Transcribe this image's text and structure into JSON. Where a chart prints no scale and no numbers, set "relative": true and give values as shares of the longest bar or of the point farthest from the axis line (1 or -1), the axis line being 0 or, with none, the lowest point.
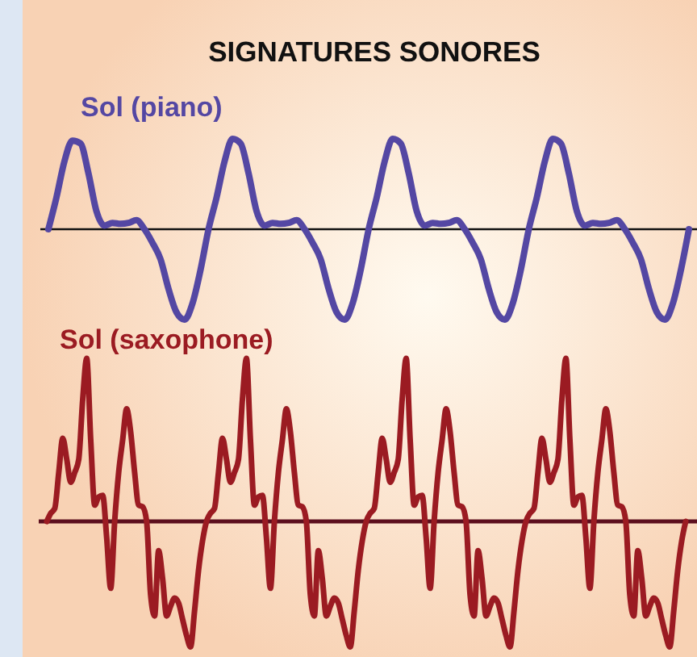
{
  "chart_data": [
    {
      "type": "line",
      "title": "SIGNATURES SONORES",
      "relative": true,
      "categories": [
        null,
        null,
        null,
        null,
        null,
        null,
        null,
        null,
        null,
        null,
        null,
        null,
        null,
        null,
        null,
        null,
        null,
        null,
        null,
        null,
        null,
        null,
        null,
        null,
        null,
        null,
        null,
        null,
        null,
        null,
        null,
        null,
        null,
        null,
        null,
        null,
        null,
        null,
        null,
        null,
        null,
        null,
        null,
        null,
        null,
        null,
        null,
        null,
        null,
        null,
        null,
        null,
        null,
        null,
        null,
        null,
        null,
        null,
        null,
        null,
        null,
        null,
        null,
        null,
        null,
        null,
        null,
        null,
        null,
        null,
        null,
        null,
        null,
        null,
        null,
        null,
        null,
        null,
        null,
        null,
        null
      ],
      "series": [
        {
          "name": "Sol (piano)",
          "color": "#5447a3",
          "values": [
            0,
            0.35,
            0.75,
            0.98,
            0.95,
            0.62,
            0.2,
            0.04,
            0.07,
            0.06,
            0.07,
            0.1,
            0,
            -0.15,
            -0.33,
            -0.66,
            -0.92,
            -1,
            -0.82,
            -0.45,
            0,
            0.35,
            0.75,
            1,
            0.95,
            0.62,
            0.2,
            0.04,
            0.07,
            0.06,
            0.07,
            0.1,
            0,
            -0.15,
            -0.33,
            -0.66,
            -0.92,
            -1,
            -0.82,
            -0.45,
            0,
            0.35,
            0.75,
            1,
            0.95,
            0.62,
            0.2,
            0.04,
            0.07,
            0.06,
            0.07,
            0.1,
            0,
            -0.15,
            -0.33,
            -0.66,
            -0.92,
            -1,
            -0.82,
            -0.45,
            0,
            0.35,
            0.75,
            1,
            0.95,
            0.62,
            0.2,
            0.04,
            0.07,
            0.06,
            0.07,
            0.1,
            0,
            -0.15,
            -0.33,
            -0.66,
            -0.92,
            -1,
            -0.82,
            -0.45,
            0
          ]
        }
      ]
    },
    {
      "type": "line",
      "relative": true,
      "categories": [
        null,
        null,
        null,
        null,
        null,
        null,
        null,
        null,
        null,
        null,
        null,
        null,
        null,
        null,
        null,
        null,
        null,
        null,
        null,
        null,
        null,
        null,
        null,
        null,
        null,
        null,
        null,
        null,
        null,
        null,
        null,
        null,
        null,
        null,
        null,
        null,
        null,
        null,
        null,
        null,
        null,
        null,
        null,
        null,
        null,
        null,
        null,
        null,
        null,
        null,
        null,
        null,
        null,
        null,
        null,
        null,
        null,
        null,
        null,
        null,
        null,
        null,
        null,
        null,
        null,
        null,
        null,
        null,
        null,
        null,
        null,
        null,
        null,
        null,
        null,
        null,
        null,
        null,
        null,
        null,
        null,
        null,
        null,
        null,
        null,
        null,
        null,
        null,
        null,
        null,
        null,
        null,
        null,
        null,
        null,
        null,
        null,
        null,
        null,
        null,
        null,
        null,
        null,
        null,
        null,
        null,
        null,
        null,
        null,
        null,
        null,
        null,
        null,
        null,
        null,
        null,
        null,
        null,
        null,
        null,
        null,
        null,
        null,
        null,
        null,
        null,
        null,
        null,
        null,
        null,
        null,
        null,
        null,
        null,
        null,
        null,
        null,
        null,
        null,
        null,
        null,
        null,
        null,
        null,
        null,
        null,
        null,
        null,
        null,
        null,
        null,
        null,
        null,
        null,
        null,
        null,
        null,
        null,
        null,
        null,
        null
      ],
      "series": [
        {
          "name": "Sol (saxophone)",
          "color": "#9b1b22",
          "values": [
            0,
            0.05,
            0.08,
            0.3,
            0.51,
            0.38,
            0.24,
            0.3,
            0.38,
            0.75,
            1,
            0.5,
            0.1,
            0.15,
            0.16,
            -0.1,
            -0.41,
            0,
            0.3,
            0.5,
            0.69,
            0.55,
            0.3,
            0.1,
            0.09,
            0,
            -0.45,
            -0.58,
            -0.18,
            -0.35,
            -0.58,
            -0.52,
            -0.47,
            -0.5,
            -0.6,
            -0.7,
            -0.77,
            -0.55,
            -0.3,
            -0.12,
            0,
            0.05,
            0.08,
            0.3,
            0.51,
            0.38,
            0.24,
            0.3,
            0.38,
            0.75,
            1,
            0.5,
            0.1,
            0.15,
            0.16,
            -0.1,
            -0.41,
            0,
            0.3,
            0.5,
            0.69,
            0.55,
            0.3,
            0.1,
            0.09,
            0,
            -0.45,
            -0.58,
            -0.18,
            -0.35,
            -0.58,
            -0.52,
            -0.47,
            -0.5,
            -0.6,
            -0.7,
            -0.77,
            -0.55,
            -0.3,
            -0.12,
            0,
            0.05,
            0.08,
            0.3,
            0.51,
            0.38,
            0.24,
            0.3,
            0.38,
            0.75,
            1,
            0.5,
            0.1,
            0.15,
            0.16,
            -0.1,
            -0.41,
            0,
            0.3,
            0.5,
            0.69,
            0.55,
            0.3,
            0.1,
            0.09,
            0,
            -0.45,
            -0.58,
            -0.18,
            -0.35,
            -0.58,
            -0.52,
            -0.47,
            -0.5,
            -0.6,
            -0.7,
            -0.77,
            -0.55,
            -0.3,
            -0.12,
            0,
            0.05,
            0.08,
            0.3,
            0.51,
            0.38,
            0.24,
            0.3,
            0.38,
            0.75,
            1,
            0.5,
            0.1,
            0.15,
            0.16,
            -0.1,
            -0.41,
            0,
            0.3,
            0.5,
            0.69,
            0.55,
            0.3,
            0.1,
            0.09,
            0,
            -0.45,
            -0.58,
            -0.18,
            -0.35,
            -0.58,
            -0.52,
            -0.47,
            -0.5,
            -0.6,
            -0.7,
            -0.77,
            -0.55,
            -0.3,
            -0.12,
            0
          ]
        }
      ]
    }
  ]
}
